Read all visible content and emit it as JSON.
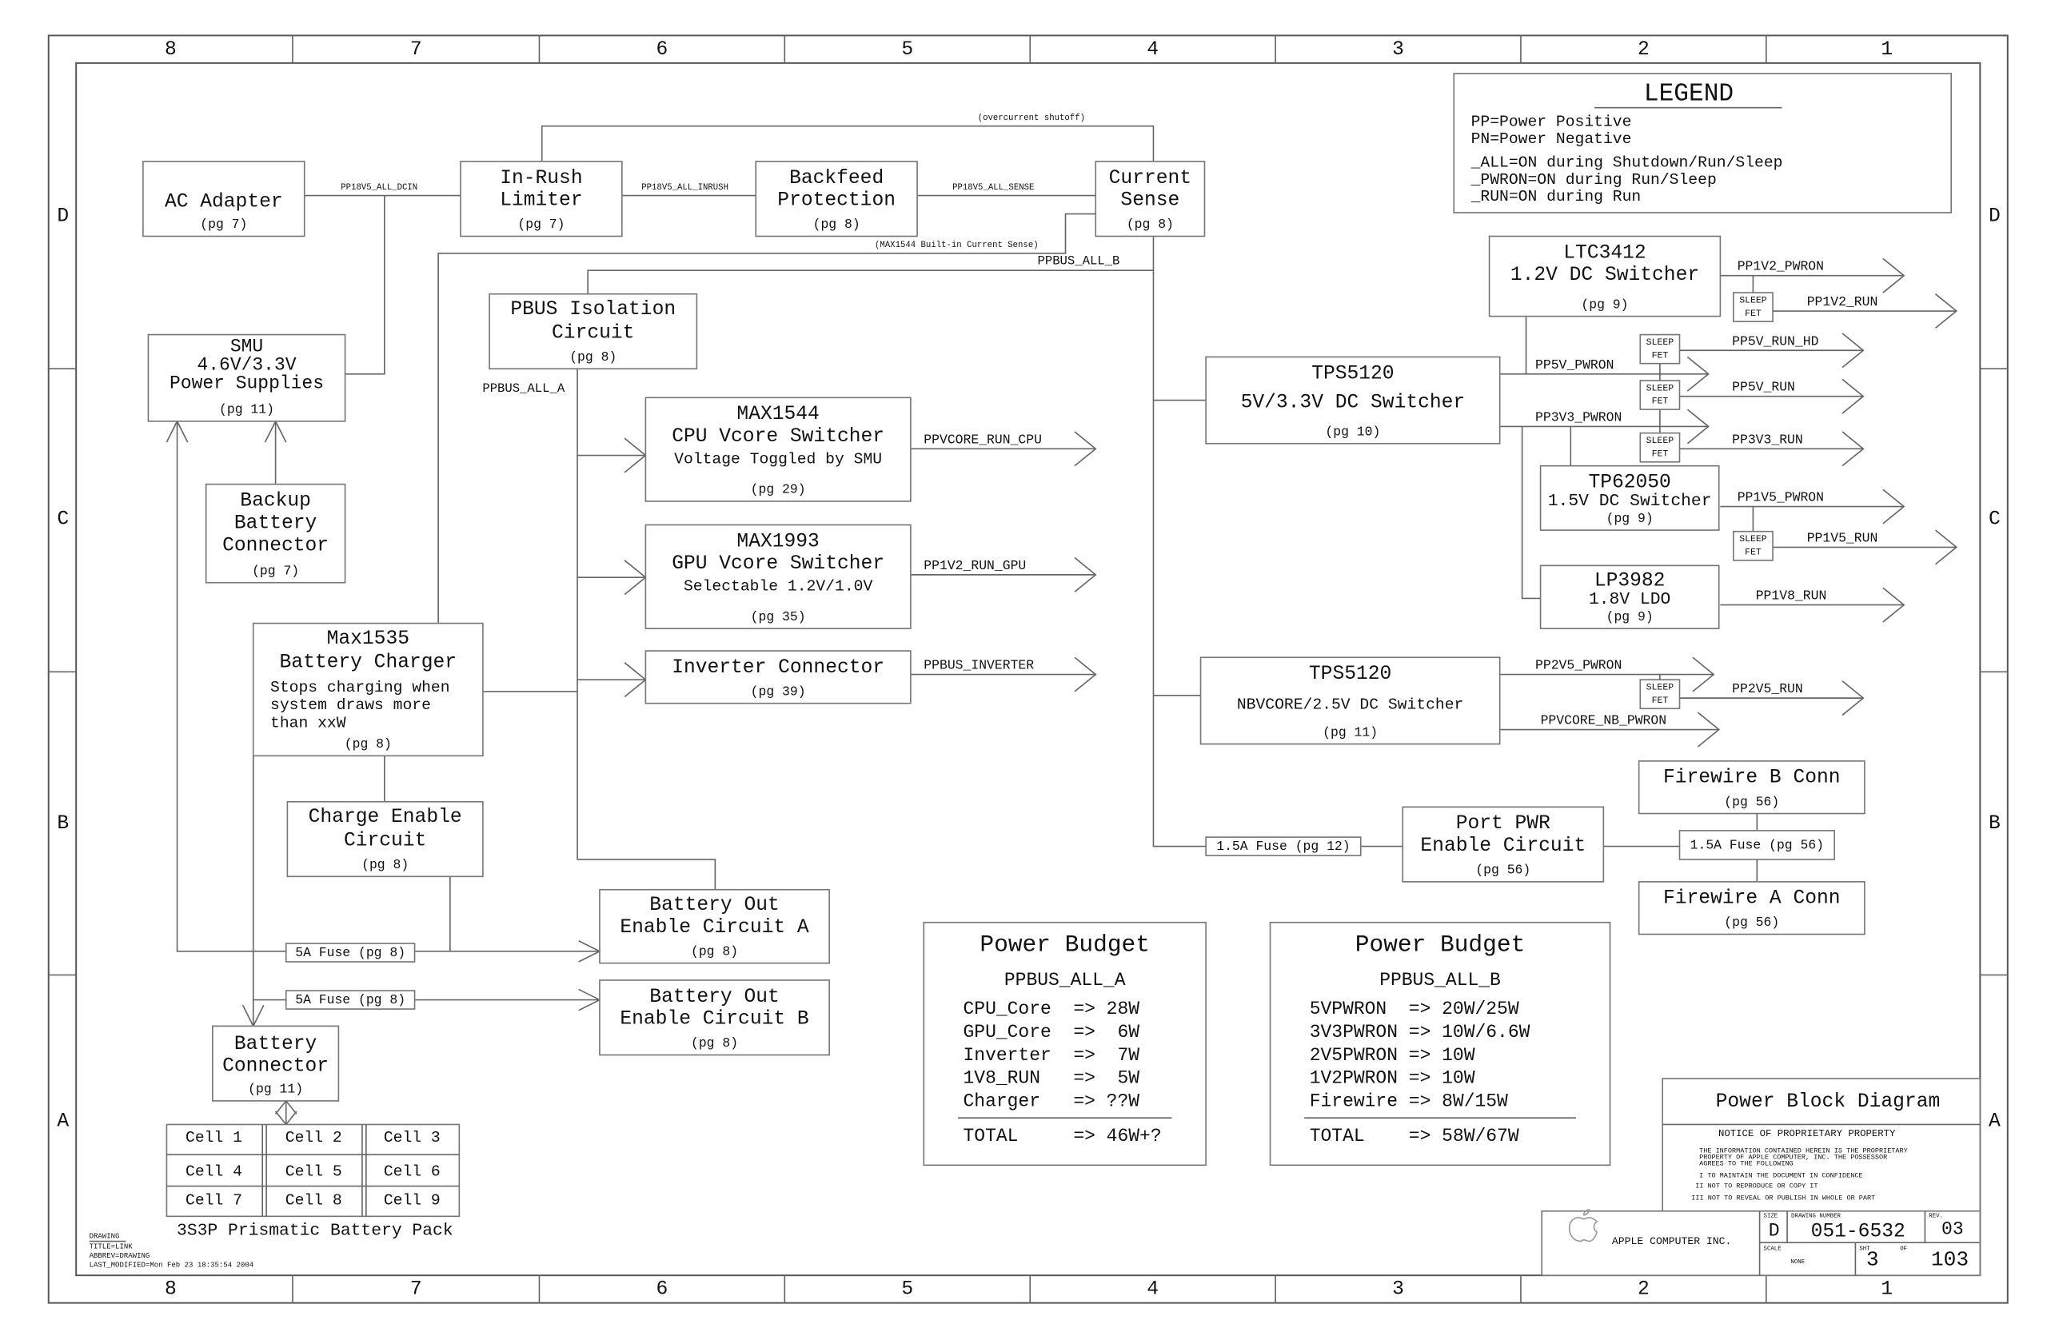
{
  "sheet": {
    "columns": [
      "8",
      "7",
      "6",
      "5",
      "4",
      "3",
      "2",
      "1"
    ],
    "rows": [
      "D",
      "C",
      "B",
      "A"
    ]
  },
  "blocks": {
    "ac_adapter": {
      "lines": [
        "AC Adapter"
      ],
      "pg": "(pg 7)"
    },
    "inrush": {
      "lines": [
        "In-Rush",
        "Limiter"
      ],
      "pg": "(pg 7)"
    },
    "backfeed": {
      "lines": [
        "Backfeed",
        "Protection"
      ],
      "pg": "(pg 8)"
    },
    "current_sense": {
      "lines": [
        "Current",
        "Sense"
      ],
      "pg": "(pg 8)"
    },
    "smu": {
      "lines": [
        "SMU",
        "4.6V/3.3V",
        "Power Supplies"
      ],
      "pg": "(pg 11)"
    },
    "backup_battery": {
      "lines": [
        "Backup",
        "Battery",
        "Connector"
      ],
      "pg": "(pg 7)"
    },
    "pbus_isolation": {
      "lines": [
        "PBUS Isolation",
        "Circuit"
      ],
      "pg": "(pg 8)"
    },
    "max1544": {
      "lines": [
        "MAX1544",
        "CPU Vcore Switcher",
        "Voltage Toggled by SMU"
      ],
      "pg": "(pg 29)"
    },
    "max1993": {
      "lines": [
        "MAX1993",
        "GPU Vcore Switcher",
        "Selectable 1.2V/1.0V"
      ],
      "pg": "(pg 35)"
    },
    "inverter": {
      "lines": [
        "Inverter Connector"
      ],
      "pg": "(pg 39)"
    },
    "max1535": {
      "lines": [
        "Max1535",
        "Battery Charger"
      ],
      "desc": [
        "Stops charging when",
        "system draws more",
        "than xxW"
      ],
      "pg": "(pg 8)"
    },
    "charge_enable": {
      "lines": [
        "Charge Enable",
        "Circuit"
      ],
      "pg": "(pg 8)"
    },
    "battery_out_a": {
      "lines": [
        "Battery Out",
        "Enable Circuit A"
      ],
      "pg": "(pg 8)"
    },
    "battery_out_b": {
      "lines": [
        "Battery Out",
        "Enable Circuit B"
      ],
      "pg": "(pg 8)"
    },
    "battery_connector": {
      "lines": [
        "Battery",
        "Connector"
      ],
      "pg": "(pg 11)"
    },
    "ltc3412": {
      "lines": [
        "LTC3412",
        "1.2V DC Switcher"
      ],
      "pg": "(pg 9)"
    },
    "tps5120_a": {
      "lines": [
        "TPS5120",
        "5V/3.3V DC Switcher"
      ],
      "pg": "(pg 10)"
    },
    "tp62050": {
      "lines": [
        "TP62050",
        "1.5V DC Switcher"
      ],
      "pg": "(pg 9)"
    },
    "lp3982": {
      "lines": [
        "LP3982",
        "1.8V LDO"
      ],
      "pg": "(pg 9)"
    },
    "tps5120_b": {
      "lines": [
        "TPS5120",
        "NBVCORE/2.5V DC Switcher"
      ],
      "pg": "(pg 11)"
    },
    "port_pwr": {
      "lines": [
        "Port PWR",
        "Enable Circuit"
      ],
      "pg": "(pg 56)"
    },
    "firewire_b": {
      "lines": [
        "Firewire B Conn"
      ],
      "pg": "(pg 56)"
    },
    "firewire_a": {
      "lines": [
        "Firewire A Conn"
      ],
      "pg": "(pg 56)"
    }
  },
  "nets": {
    "pp18v5_all_dcin": "PP18V5_ALL_DCIN",
    "pp18v5_all_inrush": "PP18V5_ALL_INRUSH",
    "pp18v5_all_sense": "PP18V5_ALL_SENSE",
    "overcurrent": "(overcurrent shutoff)",
    "max1544_sense": "(MAX1544 Built-in Current Sense)",
    "ppbus_all_b": "PPBUS_ALL_B",
    "ppbus_all_a": "PPBUS_ALL_A",
    "ppvcore_run_cpu": "PPVCORE_RUN_CPU",
    "pp1v2_run_gpu": "PP1V2_RUN_GPU",
    "ppbus_inverter": "PPBUS_INVERTER",
    "pp1v2_pwron": "PP1V2_PWRON",
    "pp1v2_run": "PP1V2_RUN",
    "pp5v_run_hd": "PP5V_RUN_HD",
    "pp5v_pwron": "PP5V_PWRON",
    "pp5v_run": "PP5V_RUN",
    "pp3v3_pwron": "PP3V3_PWRON",
    "pp3v3_run": "PP3V3_RUN",
    "pp1v5_pwron": "PP1V5_PWRON",
    "pp1v5_run": "PP1V5_RUN",
    "pp1v8_run": "PP1V8_RUN",
    "pp2v5_pwron": "PP2V5_PWRON",
    "pp2v5_run": "PP2V5_RUN",
    "ppvcore_nb_pwron": "PPVCORE_NB_PWRON"
  },
  "sleep_fet": [
    "SLEEP",
    "FET"
  ],
  "fuses": {
    "fuse_pg12": "1.5A Fuse (pg 12)",
    "fuse_pg56": "1.5A Fuse (pg 56)",
    "fuse_5a_1": "5A Fuse (pg 8)",
    "fuse_5a_2": "5A Fuse (pg 8)"
  },
  "legend": {
    "title": "LEGEND",
    "lines": [
      "PP=Power Positive",
      "PN=Power Negative",
      "_ALL=ON during Shutdown/Run/Sleep",
      "_PWRON=ON during Run/Sleep",
      "_RUN=ON during Run"
    ]
  },
  "battery_pack": {
    "cells": [
      "Cell 1",
      "Cell 2",
      "Cell 3",
      "Cell 4",
      "Cell 5",
      "Cell 6",
      "Cell 7",
      "Cell 8",
      "Cell 9"
    ],
    "label": "3S3P Prismatic Battery Pack"
  },
  "budgets": [
    {
      "title": "Power Budget",
      "bus": "PPBUS_ALL_A",
      "rows": [
        "CPU_Core  => 28W",
        "GPU_Core  =>  6W",
        "Inverter  =>  7W",
        "1V8_RUN   =>  5W",
        "Charger   => ??W"
      ],
      "total": "TOTAL     => 46W+?"
    },
    {
      "title": "Power Budget",
      "bus": "PPBUS_ALL_B",
      "rows": [
        "5VPWRON  => 20W/25W",
        "3V3PWRON => 10W/6.6W",
        "2V5PWRON => 10W",
        "1V2PWRON => 10W",
        "Firewire => 8W/15W"
      ],
      "total": "TOTAL    => 58W/67W"
    }
  ],
  "title_block": {
    "title": "Power Block Diagram",
    "notice_title": "NOTICE OF PROPRIETARY PROPERTY",
    "notice_lines": [
      "THE INFORMATION CONTAINED HEREIN IS THE PROPRIETARY",
      "PROPERTY OF APPLE COMPUTER, INC. THE POSSESSOR",
      "AGREES TO THE FOLLOWING",
      "I TO MAINTAIN THE DOCUMENT IN CONFIDENCE",
      "II NOT TO REPRODUCE OR COPY IT",
      "III NOT TO REVEAL OR PUBLISH IN WHOLE OR PART"
    ],
    "company": "APPLE COMPUTER INC.",
    "size_label": "SIZE",
    "size": "D",
    "drawing_number_label": "DRAWING NUMBER",
    "drawing_number": "051-6532",
    "rev_label": "REV.",
    "rev": "03",
    "scale_label": "SCALE",
    "scale": "NONE",
    "sheet_label": "SHT",
    "sheet": "3",
    "of_label": "OF",
    "of": "103"
  },
  "drawing_info": [
    "DRAWING",
    "TITLE=LINK",
    "ABBREV=DRAWING",
    "LAST_MODIFIED=Mon Feb 23 18:35:54 2004"
  ]
}
